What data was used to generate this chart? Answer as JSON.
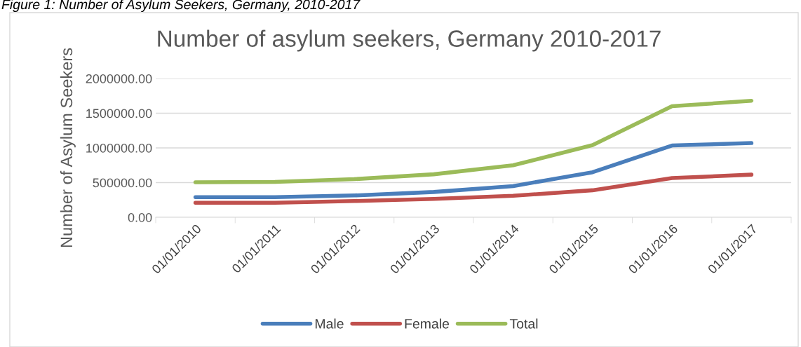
{
  "chart_data": {
    "type": "line",
    "title": "Number of asylum seekers, Germany 2010-2017",
    "ylabel": "Number of Asylum Seekers",
    "annotations": [
      "Figure 1: Number of Asylum Seekers, Germany, 2010-2017"
    ],
    "categories": [
      "01/01/2010",
      "01/01/2011",
      "01/01/2012",
      "01/01/2013",
      "01/01/2014",
      "01/01/2015",
      "01/01/2016",
      "01/01/2017"
    ],
    "series": [
      {
        "name": "Male",
        "color": "#4a7ebb",
        "values": [
          290000,
          290000,
          315000,
          365000,
          450000,
          650000,
          1035000,
          1070000
        ]
      },
      {
        "name": "Female",
        "color": "#c0504d",
        "values": [
          210000,
          210000,
          235000,
          265000,
          310000,
          390000,
          565000,
          615000
        ]
      },
      {
        "name": "Total",
        "color": "#9bbb59",
        "values": [
          505000,
          510000,
          550000,
          620000,
          750000,
          1040000,
          1600000,
          1680000
        ]
      }
    ],
    "ylim": [
      0,
      2000000
    ],
    "yticks": [
      {
        "value": 0,
        "label": "0.00"
      },
      {
        "value": 500000,
        "label": "500000.00"
      },
      {
        "value": 1000000,
        "label": "1000000.00"
      },
      {
        "value": 1500000,
        "label": "1500000.00"
      },
      {
        "value": 2000000,
        "label": "2000000.00"
      }
    ],
    "grid": "y",
    "legend": "bottom",
    "marker": "none",
    "line_style": "solid"
  }
}
